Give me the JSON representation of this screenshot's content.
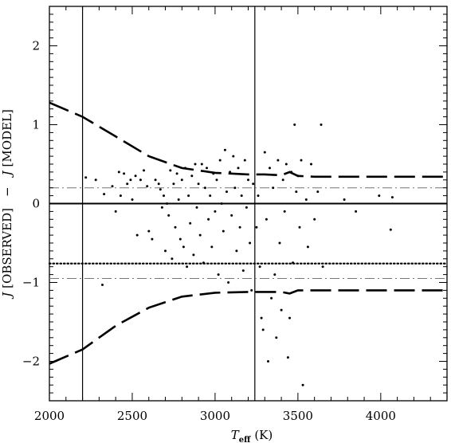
{
  "chart_data": {
    "type": "scatter",
    "xlabel": {
      "symbol": "T",
      "subscript": "eff",
      "unit": "(K)"
    },
    "ylabel": {
      "prefix": "J",
      "bracket1": "[OBSERVED]",
      "dash": "−",
      "prefix2": "J",
      "bracket2": "[MODEL]"
    },
    "xlim": [
      2000,
      4400
    ],
    "ylim": [
      -2.5,
      2.5
    ],
    "x_ticks": [
      2000,
      2500,
      3000,
      3500,
      4000
    ],
    "y_ticks": [
      -2,
      -1,
      0,
      1,
      2
    ],
    "x_tick_labels": [
      "2000",
      "2500",
      "3000",
      "3500",
      "4000"
    ],
    "y_tick_labels": [
      "−2",
      "−1",
      "0",
      "1",
      "2"
    ],
    "vertical_lines_x": [
      2200,
      3240
    ],
    "horizontal_lines": [
      {
        "y": 0.0,
        "style": "solid"
      },
      {
        "y": -0.76,
        "style": "dotted"
      },
      {
        "y": 0.2,
        "style": "dashdot"
      },
      {
        "y": -0.95,
        "style": "dashdot"
      }
    ],
    "upper_envelope": {
      "x": [
        2000,
        2200,
        2400,
        2600,
        2800,
        3000,
        3200,
        3300,
        3400,
        3450,
        3500,
        3600,
        3800,
        4000,
        4200,
        4400
      ],
      "y": [
        1.28,
        1.1,
        0.85,
        0.6,
        0.45,
        0.39,
        0.37,
        0.37,
        0.36,
        0.4,
        0.35,
        0.34,
        0.34,
        0.34,
        0.34,
        0.34
      ]
    },
    "lower_envelope": {
      "x": [
        2000,
        2200,
        2400,
        2600,
        2800,
        3000,
        3200,
        3300,
        3400,
        3450,
        3500,
        3600,
        3800,
        4000,
        4200,
        4400
      ],
      "y": [
        -2.03,
        -1.85,
        -1.55,
        -1.32,
        -1.18,
        -1.13,
        -1.12,
        -1.12,
        -1.12,
        -1.14,
        -1.1,
        -1.1,
        -1.1,
        -1.1,
        -1.1,
        -1.1
      ]
    },
    "points": [
      [
        2220,
        0.33
      ],
      [
        2280,
        0.3
      ],
      [
        2320,
        -1.03
      ],
      [
        2330,
        0.12
      ],
      [
        2380,
        0.22
      ],
      [
        2400,
        -0.1
      ],
      [
        2420,
        0.4
      ],
      [
        2430,
        0.1
      ],
      [
        2450,
        0.38
      ],
      [
        2470,
        0.25
      ],
      [
        2490,
        0.3
      ],
      [
        2500,
        0.05
      ],
      [
        2520,
        0.35
      ],
      [
        2530,
        -0.4
      ],
      [
        2550,
        0.3
      ],
      [
        2570,
        0.42
      ],
      [
        2590,
        0.22
      ],
      [
        2600,
        -0.35
      ],
      [
        2620,
        -0.45
      ],
      [
        2640,
        0.3
      ],
      [
        2660,
        0.25
      ],
      [
        2670,
        0.18
      ],
      [
        2680,
        -0.05
      ],
      [
        2690,
        0.1
      ],
      [
        2700,
        -0.6
      ],
      [
        2710,
        0.0
      ],
      [
        2720,
        -0.15
      ],
      [
        2730,
        0.42
      ],
      [
        2740,
        -0.7
      ],
      [
        2750,
        0.25
      ],
      [
        2760,
        -0.3
      ],
      [
        2770,
        0.38
      ],
      [
        2780,
        0.05
      ],
      [
        2790,
        -0.45
      ],
      [
        2800,
        0.3
      ],
      [
        2810,
        -0.55
      ],
      [
        2820,
        0.45
      ],
      [
        2830,
        -0.8
      ],
      [
        2840,
        0.1
      ],
      [
        2850,
        -0.25
      ],
      [
        2860,
        0.35
      ],
      [
        2870,
        -0.65
      ],
      [
        2880,
        0.5
      ],
      [
        2890,
        -0.05
      ],
      [
        2900,
        0.25
      ],
      [
        2910,
        -0.4
      ],
      [
        2920,
        0.5
      ],
      [
        2930,
        -0.75
      ],
      [
        2940,
        0.2
      ],
      [
        2950,
        0.45
      ],
      [
        2960,
        -0.2
      ],
      [
        2970,
        0.1
      ],
      [
        2980,
        -0.55
      ],
      [
        2990,
        0.38
      ],
      [
        3000,
        -0.1
      ],
      [
        3010,
        0.3
      ],
      [
        3020,
        -0.9
      ],
      [
        3030,
        0.55
      ],
      [
        3040,
        0.0
      ],
      [
        3050,
        -0.35
      ],
      [
        3060,
        0.68
      ],
      [
        3070,
        0.15
      ],
      [
        3080,
        -1.0
      ],
      [
        3090,
        0.4
      ],
      [
        3100,
        -0.15
      ],
      [
        3110,
        0.6
      ],
      [
        3120,
        0.2
      ],
      [
        3130,
        -0.6
      ],
      [
        3140,
        0.45
      ],
      [
        3150,
        -0.3
      ],
      [
        3160,
        0.1
      ],
      [
        3170,
        -0.85
      ],
      [
        3180,
        0.55
      ],
      [
        3190,
        -0.05
      ],
      [
        3200,
        0.3
      ],
      [
        3210,
        -0.5
      ],
      [
        3220,
        -1.1
      ],
      [
        3230,
        0.25
      ],
      [
        3250,
        -0.3
      ],
      [
        3260,
        0.1
      ],
      [
        3270,
        -0.8
      ],
      [
        3280,
        -1.45
      ],
      [
        3290,
        -1.6
      ],
      [
        3300,
        0.65
      ],
      [
        3310,
        -0.2
      ],
      [
        3320,
        -2.0
      ],
      [
        3330,
        0.45
      ],
      [
        3340,
        -1.2
      ],
      [
        3350,
        0.2
      ],
      [
        3360,
        -0.9
      ],
      [
        3370,
        -1.7
      ],
      [
        3380,
        0.55
      ],
      [
        3390,
        -0.5
      ],
      [
        3400,
        -1.35
      ],
      [
        3410,
        0.3
      ],
      [
        3420,
        -0.1
      ],
      [
        3430,
        0.5
      ],
      [
        3440,
        -1.95
      ],
      [
        3450,
        -1.45
      ],
      [
        3460,
        0.4
      ],
      [
        3470,
        -0.75
      ],
      [
        3480,
        1.0
      ],
      [
        3490,
        0.15
      ],
      [
        3500,
        0.35
      ],
      [
        3510,
        -0.3
      ],
      [
        3520,
        0.55
      ],
      [
        3530,
        -2.3
      ],
      [
        3550,
        0.05
      ],
      [
        3560,
        -0.55
      ],
      [
        3580,
        0.5
      ],
      [
        3600,
        -0.2
      ],
      [
        3620,
        0.15
      ],
      [
        3640,
        1.0
      ],
      [
        3650,
        -0.8
      ],
      [
        3780,
        0.05
      ],
      [
        3850,
        -0.1
      ],
      [
        3990,
        0.1
      ],
      [
        4060,
        -0.33
      ],
      [
        4070,
        0.08
      ]
    ]
  }
}
